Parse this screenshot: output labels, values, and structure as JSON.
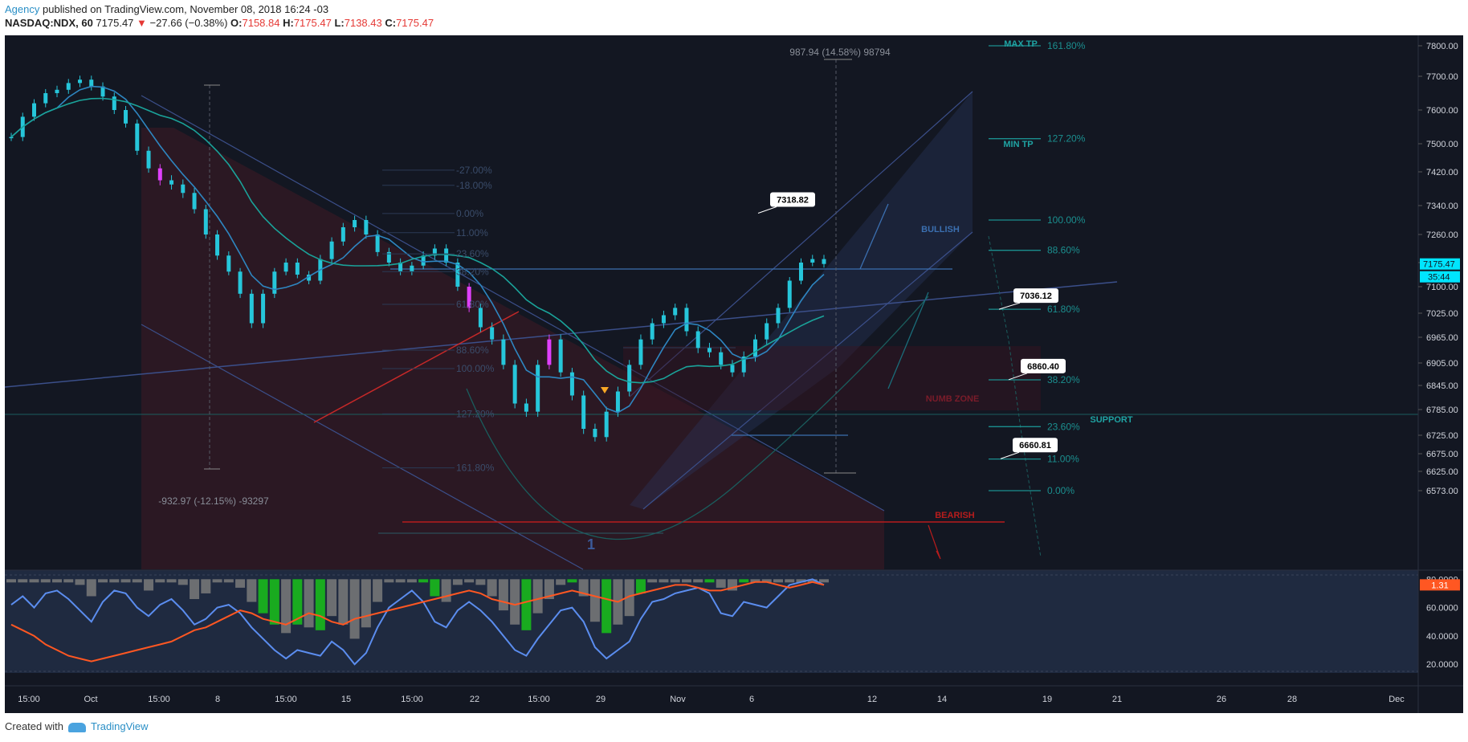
{
  "header": {
    "author": "Agency",
    "published_text": "published on TradingView.com, November 08, 2018 16:24 -03",
    "symbol": "NASDAQ:NDX, 60",
    "last": "7175.47",
    "change_arrow": "▼",
    "change": "−27.66 (−0.38%)",
    "o_label": "O:",
    "o_val": "7158.84",
    "h_label": "H:",
    "h_val": "7175.47",
    "l_label": "L:",
    "l_val": "7138.43",
    "c_label": "C:",
    "c_val": "7175.47"
  },
  "footer": {
    "created_with": "Created with",
    "brand": "TradingView"
  },
  "colors": {
    "background": "#131722",
    "candle_up": "#26c6da",
    "candle_down": "#26c6da",
    "highlight_candle": "#e040fb",
    "ma_fast": "#2e86c1",
    "ma_slow": "#1aa39a",
    "fib_right": "#1b8f8f",
    "channel": "#3b4f8a",
    "bearish_red": "#b71c1c",
    "osc_blue": "#5b8def",
    "osc_orange": "#ff5722",
    "osc_green": "#19c21a",
    "osc_gray": "#7a7a7a",
    "price_tag": "#00e5ff"
  },
  "chart_data": [
    {
      "type": "candlestick",
      "title": "NASDAQ:NDX, 60",
      "y_range": [
        6573,
        7830
      ],
      "y_ticks": [
        "7800.00",
        "7700.00",
        "7600.00",
        "7500.00",
        "7420.00",
        "7340.00",
        "7260.00",
        "7180.00",
        "7100.00",
        "7025.00",
        "6965.00",
        "6905.00",
        "6845.00",
        "6785.00",
        "6725.00",
        "6675.00",
        "6625.00",
        "6573.00"
      ],
      "x_ticks": [
        "15:00",
        "Oct",
        "15:00",
        "8",
        "15:00",
        "15",
        "15:00",
        "22",
        "15:00",
        "29",
        "Nov",
        "6",
        "12",
        "14",
        "19",
        "21",
        "26",
        "28",
        "Dec"
      ],
      "price_series_close": [
        7520,
        7580,
        7620,
        7650,
        7660,
        7680,
        7690,
        7670,
        7640,
        7600,
        7560,
        7480,
        7430,
        7400,
        7390,
        7370,
        7330,
        7260,
        7200,
        7150,
        7080,
        7000,
        7080,
        7150,
        7180,
        7140,
        7120,
        7190,
        7240,
        7280,
        7300,
        7260,
        7210,
        7180,
        7150,
        7170,
        7200,
        7220,
        7180,
        7100,
        7040,
        6990,
        6960,
        6900,
        6800,
        6780,
        6900,
        6960,
        6880,
        6820,
        6740,
        6720,
        6780,
        6830,
        6900,
        6960,
        7000,
        7020,
        7040,
        6980,
        6940,
        6930,
        6900,
        6880,
        6920,
        6960,
        7000,
        7040,
        7120,
        7180,
        7190,
        7175.47
      ],
      "current_price": "7175.47",
      "countdown": "35:44",
      "callouts": [
        {
          "label": "7318.82",
          "value": 7318.82
        },
        {
          "label": "7036.12",
          "value": 7036.12
        },
        {
          "label": "6860.40",
          "value": 6860.4
        },
        {
          "label": "6660.81",
          "value": 6660.81
        }
      ],
      "measure_labels": [
        {
          "text": "987.94 (14.58%) 98794"
        },
        {
          "text": "-932.97 (-12.15%) -93297"
        }
      ],
      "zone_labels": [
        "MAX TP",
        "MIN TP",
        "BULLISH",
        "NUMB ZONE",
        "SUPPORT",
        "BEARISH"
      ],
      "fib_right": [
        {
          "label": "161.80%",
          "value": 7800
        },
        {
          "label": "127.20%",
          "value": 7515
        },
        {
          "label": "100.00%",
          "value": 7300
        },
        {
          "label": "88.60%",
          "value": 7215
        },
        {
          "label": "61.80%",
          "value": 7036
        },
        {
          "label": "38.20%",
          "value": 6860
        },
        {
          "label": "23.60%",
          "value": 6745
        },
        {
          "label": "11.00%",
          "value": 6660
        },
        {
          "label": "0.00%",
          "value": 6573
        }
      ],
      "fib_left": [
        {
          "label": "-27.00%",
          "value": 7425
        },
        {
          "label": "-18.00%",
          "value": 7388
        },
        {
          "label": "0.00%",
          "value": 7318
        },
        {
          "label": "11.00%",
          "value": 7265
        },
        {
          "label": "23.60%",
          "value": 7205
        },
        {
          "label": "38.20%",
          "value": 7150
        },
        {
          "label": "61.80%",
          "value": 7050
        },
        {
          "label": "88.60%",
          "value": 6935
        },
        {
          "label": "100.00%",
          "value": 6890
        },
        {
          "label": "127.20%",
          "value": 6775
        },
        {
          "label": "161.80%",
          "value": 6635
        }
      ],
      "wave_label": "1"
    },
    {
      "type": "line",
      "title": "",
      "y_range": [
        15,
        83
      ],
      "y_ticks": [
        "80.0000",
        "60.0000",
        "40.0000",
        "20.0000"
      ],
      "current_value": "1.31",
      "series": [
        {
          "name": "",
          "color": "#5b8def",
          "values": [
            62,
            68,
            60,
            70,
            72,
            66,
            58,
            50,
            64,
            72,
            70,
            60,
            54,
            62,
            66,
            58,
            48,
            52,
            60,
            62,
            56,
            46,
            38,
            30,
            24,
            30,
            28,
            26,
            36,
            30,
            20,
            28,
            46,
            60,
            66,
            72,
            64,
            50,
            46,
            58,
            64,
            58,
            50,
            40,
            30,
            26,
            38,
            48,
            58,
            60,
            50,
            32,
            24,
            30,
            36,
            52,
            64,
            66,
            70,
            72,
            74,
            70,
            56,
            54,
            64,
            62,
            60,
            68,
            76,
            78,
            80,
            76
          ]
        },
        {
          "name": "",
          "color": "#ff5722",
          "values": [
            48,
            44,
            40,
            34,
            30,
            26,
            24,
            22,
            24,
            26,
            28,
            30,
            32,
            34,
            36,
            40,
            44,
            46,
            50,
            54,
            58,
            56,
            52,
            50,
            48,
            52,
            56,
            54,
            50,
            48,
            52,
            54,
            56,
            58,
            60,
            62,
            64,
            66,
            68,
            70,
            72,
            70,
            66,
            64,
            62,
            64,
            66,
            68,
            70,
            72,
            70,
            68,
            66,
            64,
            68,
            70,
            72,
            74,
            76,
            76,
            74,
            72,
            72,
            74,
            76,
            78,
            78,
            76,
            74,
            76,
            78,
            76
          ]
        }
      ]
    }
  ]
}
